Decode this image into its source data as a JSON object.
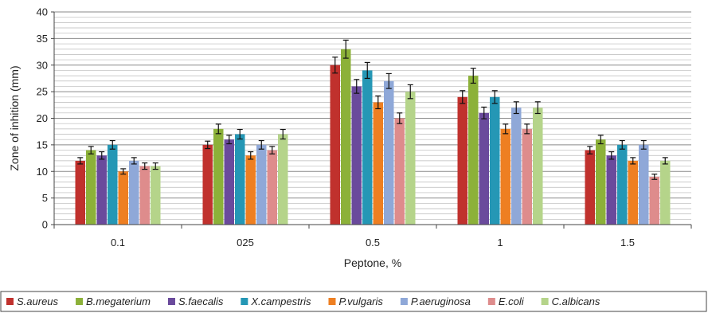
{
  "chart_data": {
    "type": "bar",
    "title": "",
    "xlabel": "Peptone, %",
    "ylabel": "Zone of inhition (mm)",
    "ylim": [
      0,
      40
    ],
    "yticks": [
      0,
      5,
      10,
      15,
      20,
      25,
      30,
      35,
      40
    ],
    "grid": true,
    "legend_position": "bottom",
    "error_bars": true,
    "categories": [
      "0.1",
      "025",
      "0.5",
      "1",
      "1.5"
    ],
    "series": [
      {
        "name": "S.aureus",
        "color": "#C0312D",
        "values": [
          12,
          15,
          30,
          24,
          14
        ],
        "error": [
          0.6,
          0.7,
          1.5,
          1.2,
          0.7
        ]
      },
      {
        "name": "B.megaterium",
        "color": "#8CB139",
        "values": [
          14,
          18,
          33,
          28,
          16
        ],
        "error": [
          0.7,
          0.9,
          1.7,
          1.4,
          0.8
        ]
      },
      {
        "name": "S.faecalis",
        "color": "#6A4A9C",
        "values": [
          13,
          16,
          26,
          21,
          13
        ],
        "error": [
          0.7,
          0.8,
          1.3,
          1.1,
          0.7
        ]
      },
      {
        "name": "X.campestris",
        "color": "#2597B5",
        "values": [
          15,
          17,
          29,
          24,
          15
        ],
        "error": [
          0.8,
          0.9,
          1.5,
          1.2,
          0.8
        ]
      },
      {
        "name": "P.vulgaris",
        "color": "#EE7F22",
        "values": [
          10,
          13,
          23,
          18,
          12
        ],
        "error": [
          0.5,
          0.7,
          1.2,
          0.9,
          0.6
        ]
      },
      {
        "name": "P.aeruginosa",
        "color": "#8FA8D8",
        "values": [
          12,
          15,
          27,
          22,
          15
        ],
        "error": [
          0.6,
          0.8,
          1.4,
          1.1,
          0.8
        ]
      },
      {
        "name": "E.coli",
        "color": "#DE8C8C",
        "values": [
          11,
          14,
          20,
          18,
          9
        ],
        "error": [
          0.6,
          0.7,
          1.0,
          0.9,
          0.5
        ]
      },
      {
        "name": "C.albicans",
        "color": "#B5D48A",
        "values": [
          11,
          17,
          25,
          22,
          12
        ],
        "error": [
          0.6,
          0.9,
          1.3,
          1.1,
          0.6
        ]
      }
    ]
  }
}
